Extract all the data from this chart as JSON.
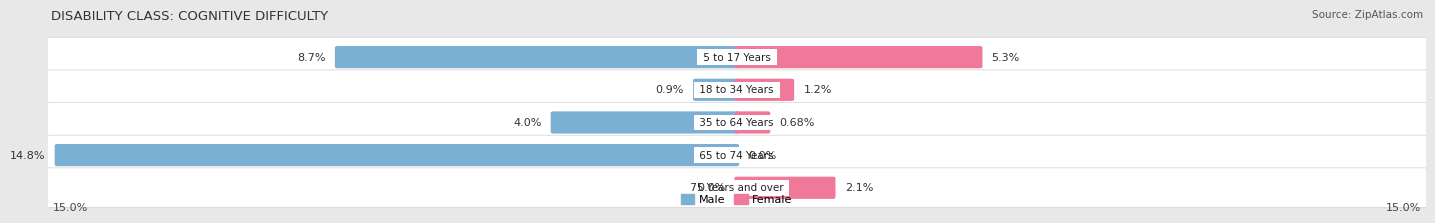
{
  "title": "DISABILITY CLASS: COGNITIVE DIFFICULTY",
  "source": "Source: ZipAtlas.com",
  "categories": [
    "5 to 17 Years",
    "18 to 34 Years",
    "35 to 64 Years",
    "65 to 74 Years",
    "75 Years and over"
  ],
  "male_values": [
    8.7,
    0.9,
    4.0,
    14.8,
    0.0
  ],
  "female_values": [
    5.3,
    1.2,
    0.68,
    0.0,
    2.1
  ],
  "male_color": "#7bafd4",
  "female_color": "#f07898",
  "max_val": 15.0,
  "bar_height": 0.58,
  "background_color": "#e8e8e8",
  "row_bg_color": "#f2f2f2",
  "title_fontsize": 9.5,
  "label_fontsize": 8,
  "source_fontsize": 7.5
}
